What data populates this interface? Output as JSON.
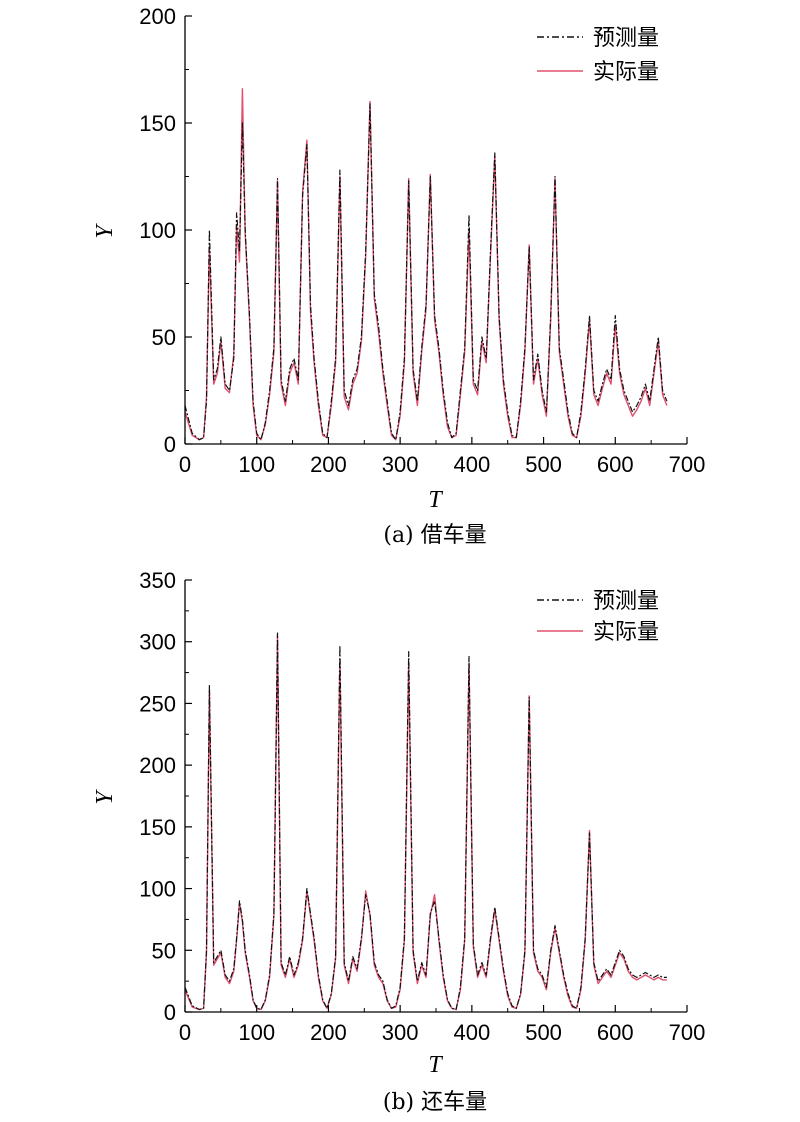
{
  "colors": {
    "predicted": "#111111",
    "actual": "#e0506e",
    "axis": "#000000"
  },
  "chart_data": [
    {
      "type": "line",
      "caption": "(a) 借车量",
      "xlabel": "T",
      "ylabel": "Y",
      "xlim": [
        0,
        700
      ],
      "ylim": [
        0,
        200
      ],
      "xticks": [
        0,
        100,
        200,
        300,
        400,
        500,
        600,
        700
      ],
      "yticks": [
        0,
        50,
        100,
        150,
        200
      ],
      "legend_position": "top-right",
      "x": [
        0,
        10,
        20,
        26,
        30,
        34,
        40,
        45,
        50,
        56,
        62,
        68,
        72,
        76,
        80,
        84,
        90,
        95,
        100,
        106,
        112,
        118,
        124,
        129,
        134,
        140,
        146,
        152,
        158,
        164,
        170,
        175,
        180,
        186,
        192,
        198,
        204,
        210,
        216,
        222,
        228,
        234,
        240,
        246,
        252,
        258,
        264,
        270,
        276,
        282,
        288,
        294,
        300,
        306,
        312,
        318,
        324,
        330,
        336,
        342,
        348,
        354,
        360,
        366,
        372,
        378,
        384,
        390,
        396,
        402,
        408,
        414,
        420,
        426,
        432,
        438,
        444,
        450,
        456,
        462,
        468,
        474,
        480,
        486,
        492,
        498,
        504,
        510,
        516,
        522,
        528,
        534,
        540,
        546,
        552,
        558,
        564,
        570,
        576,
        582,
        588,
        594,
        600,
        606,
        612,
        618,
        624,
        630,
        636,
        642,
        648,
        654,
        660,
        666,
        672
      ],
      "series": [
        {
          "name": "预测量",
          "style": "dashdot",
          "values": [
            18,
            5,
            2,
            3,
            20,
            100,
            30,
            35,
            50,
            28,
            25,
            40,
            108,
            90,
            150,
            100,
            60,
            20,
            5,
            2,
            10,
            25,
            45,
            124,
            30,
            20,
            35,
            40,
            30,
            116,
            140,
            65,
            40,
            20,
            5,
            3,
            20,
            40,
            128,
            25,
            18,
            30,
            35,
            50,
            90,
            159,
            70,
            55,
            35,
            20,
            5,
            2,
            15,
            40,
            123,
            35,
            20,
            45,
            65,
            125,
            60,
            45,
            25,
            10,
            3,
            5,
            25,
            45,
            107,
            30,
            25,
            50,
            40,
            90,
            136,
            60,
            30,
            15,
            4,
            3,
            20,
            45,
            92,
            30,
            42,
            25,
            15,
            60,
            125,
            45,
            30,
            15,
            5,
            3,
            15,
            35,
            60,
            25,
            20,
            28,
            35,
            30,
            60,
            35,
            25,
            20,
            15,
            18,
            22,
            28,
            20,
            35,
            50,
            25,
            20
          ]
        },
        {
          "name": "实际量",
          "style": "solid",
          "values": [
            15,
            4,
            2,
            3,
            22,
            92,
            28,
            33,
            48,
            26,
            24,
            42,
            102,
            85,
            166,
            98,
            58,
            18,
            4,
            2,
            9,
            23,
            43,
            123,
            28,
            18,
            33,
            38,
            28,
            118,
            142,
            62,
            38,
            18,
            4,
            3,
            18,
            38,
            125,
            22,
            16,
            28,
            33,
            48,
            88,
            160,
            68,
            52,
            33,
            18,
            4,
            2,
            13,
            38,
            124,
            33,
            18,
            43,
            63,
            126,
            58,
            43,
            23,
            8,
            3,
            4,
            23,
            43,
            100,
            28,
            23,
            48,
            38,
            88,
            135,
            58,
            28,
            13,
            3,
            3,
            18,
            43,
            93,
            28,
            40,
            23,
            13,
            58,
            124,
            43,
            28,
            13,
            4,
            3,
            13,
            33,
            58,
            23,
            18,
            26,
            33,
            28,
            56,
            33,
            23,
            18,
            13,
            16,
            20,
            26,
            18,
            33,
            48,
            23,
            18
          ]
        }
      ]
    },
    {
      "type": "line",
      "caption": "(b) 还车量",
      "xlabel": "T",
      "ylabel": "Y",
      "xlim": [
        0,
        700
      ],
      "ylim": [
        0,
        350
      ],
      "xticks": [
        0,
        100,
        200,
        300,
        400,
        500,
        600,
        700
      ],
      "yticks": [
        0,
        50,
        100,
        150,
        200,
        250,
        300,
        350
      ],
      "legend_position": "top-right",
      "x": [
        0,
        10,
        20,
        26,
        30,
        34,
        40,
        45,
        50,
        56,
        62,
        68,
        72,
        76,
        80,
        84,
        90,
        95,
        100,
        106,
        112,
        118,
        124,
        129,
        134,
        140,
        146,
        152,
        158,
        164,
        170,
        175,
        180,
        186,
        192,
        198,
        204,
        210,
        216,
        222,
        228,
        234,
        240,
        246,
        252,
        258,
        264,
        270,
        276,
        282,
        288,
        294,
        300,
        306,
        312,
        318,
        324,
        330,
        336,
        342,
        348,
        354,
        360,
        366,
        372,
        378,
        384,
        390,
        396,
        402,
        408,
        414,
        420,
        426,
        432,
        438,
        444,
        450,
        456,
        462,
        468,
        474,
        480,
        486,
        492,
        498,
        504,
        510,
        516,
        522,
        528,
        534,
        540,
        546,
        552,
        558,
        564,
        570,
        576,
        582,
        588,
        594,
        600,
        606,
        612,
        618,
        624,
        630,
        636,
        642,
        648,
        654,
        660,
        666,
        672
      ],
      "series": [
        {
          "name": "预测量",
          "style": "dashdot",
          "values": [
            20,
            5,
            2,
            3,
            50,
            265,
            40,
            45,
            50,
            30,
            25,
            35,
            60,
            90,
            75,
            50,
            30,
            10,
            3,
            2,
            10,
            30,
            80,
            307,
            40,
            30,
            45,
            30,
            40,
            60,
            100,
            80,
            60,
            30,
            10,
            3,
            15,
            45,
            297,
            40,
            25,
            45,
            35,
            60,
            95,
            80,
            40,
            30,
            25,
            10,
            3,
            5,
            20,
            60,
            292,
            50,
            25,
            40,
            30,
            80,
            90,
            60,
            30,
            10,
            3,
            2,
            20,
            60,
            288,
            55,
            30,
            40,
            30,
            60,
            85,
            60,
            35,
            15,
            5,
            3,
            15,
            50,
            255,
            50,
            35,
            30,
            20,
            50,
            70,
            50,
            30,
            15,
            5,
            3,
            20,
            60,
            145,
            40,
            25,
            30,
            35,
            30,
            40,
            50,
            45,
            35,
            30,
            28,
            30,
            32,
            30,
            28,
            30,
            28,
            28
          ]
        },
        {
          "name": "实际量",
          "style": "solid",
          "values": [
            18,
            4,
            2,
            3,
            48,
            260,
            38,
            43,
            48,
            28,
            23,
            33,
            58,
            88,
            73,
            48,
            28,
            9,
            3,
            2,
            9,
            28,
            78,
            305,
            38,
            28,
            43,
            28,
            38,
            58,
            98,
            78,
            58,
            28,
            9,
            3,
            14,
            43,
            285,
            38,
            23,
            43,
            33,
            58,
            98,
            78,
            38,
            28,
            23,
            9,
            3,
            4,
            18,
            58,
            283,
            48,
            23,
            38,
            28,
            78,
            95,
            58,
            28,
            9,
            3,
            2,
            18,
            58,
            282,
            53,
            28,
            38,
            28,
            58,
            83,
            58,
            33,
            13,
            4,
            3,
            14,
            48,
            256,
            48,
            33,
            28,
            18,
            48,
            68,
            48,
            28,
            13,
            4,
            3,
            18,
            58,
            147,
            38,
            23,
            28,
            33,
            28,
            38,
            48,
            43,
            33,
            28,
            26,
            28,
            30,
            28,
            26,
            28,
            26,
            26
          ]
        }
      ]
    }
  ]
}
